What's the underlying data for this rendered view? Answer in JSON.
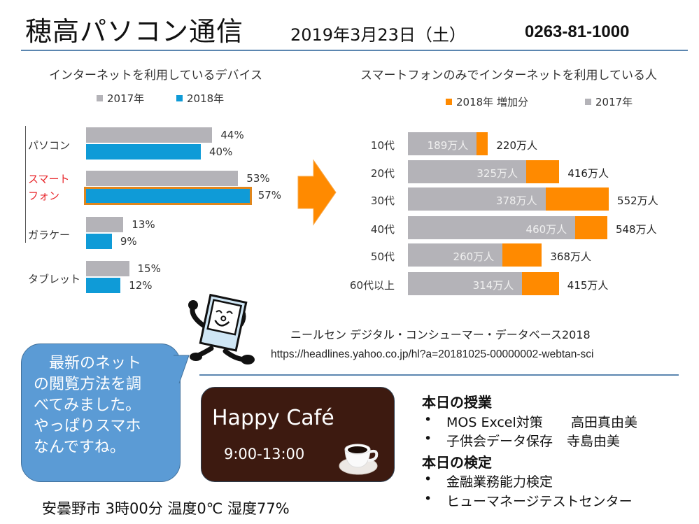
{
  "header": {
    "title": "穂高パソコン通信",
    "date": "2019年3月23日（土）",
    "phone": "0263-81-1000"
  },
  "colors": {
    "gray": "#b4b3b8",
    "blue": "#0f9bd7",
    "orange": "#ff8a00",
    "rule": "#5b86b0",
    "bubble": "#5b9bd5",
    "cafe": "#3d1a10",
    "highlight_red": "#e8262b"
  },
  "chart_data": [
    {
      "type": "bar",
      "orientation": "horizontal",
      "title": "インターネットを利用しているデバイス",
      "categories": [
        "パソコン",
        "スマートフォン",
        "ガラケー",
        "タブレット"
      ],
      "category_display": [
        [
          "パソコン"
        ],
        [
          "スマート",
          "フォン"
        ],
        [
          "ガラケー"
        ],
        [
          "タブレット"
        ]
      ],
      "highlight_category": "スマートフォン",
      "series": [
        {
          "name": "2017年",
          "values": [
            44,
            53,
            13,
            15
          ],
          "labels": [
            "44%",
            "53%",
            "13%",
            "15%"
          ]
        },
        {
          "name": "2018年",
          "values": [
            40,
            57,
            9,
            12
          ],
          "labels": [
            "40%",
            "57%",
            "9%",
            "12%"
          ]
        }
      ],
      "unit": "%",
      "xlim": [
        0,
        60
      ],
      "legend_position": "top"
    },
    {
      "type": "bar",
      "orientation": "horizontal",
      "stacked": true,
      "title": "スマートフォンのみでインターネットを利用している人",
      "categories": [
        "10代",
        "20代",
        "30代",
        "40代",
        "50代",
        "60代以上"
      ],
      "series": [
        {
          "name": "2017年",
          "values": [
            189,
            325,
            378,
            460,
            260,
            314
          ],
          "labels": [
            "189万人",
            "325万人",
            "378万人",
            "460万人",
            "260万人",
            "314万人"
          ]
        },
        {
          "name": "2018年 増加分",
          "values": [
            31,
            91,
            174,
            88,
            108,
            101
          ]
        }
      ],
      "totals": [
        220,
        416,
        552,
        548,
        368,
        415
      ],
      "total_labels": [
        "220万人",
        "416万人",
        "552万人",
        "548万人",
        "368万人",
        "415万人"
      ],
      "unit": "万人",
      "legend": [
        "2018年 増加分",
        "2017年"
      ],
      "legend_position": "top",
      "xlim": [
        0,
        560
      ]
    }
  ],
  "source": {
    "line1": "ニールセン デジタル・コンシューマー・データベース2018",
    "line2": "https://headlines.yahoo.co.jp/hl?a=20181025-00000002-webtan-sci"
  },
  "bubble": {
    "lines": [
      "　最新のネット",
      "の閲覧方法を調",
      "べてみました。",
      "やっぱりスマホ",
      "なんですね。"
    ]
  },
  "cafe": {
    "title": "Happy Café",
    "hours": "9:00-13:00",
    "icon": "coffee-cup-icon"
  },
  "classes": {
    "heading": "本日の授業",
    "items": [
      {
        "course": "MOS Excel対策",
        "teacher": "高田真由美"
      },
      {
        "course": "子供会データ保存",
        "teacher": "寺島由美"
      }
    ]
  },
  "exams": {
    "heading": "本日の検定",
    "items": [
      "金融業務能力検定",
      "ヒューマネージテストセンター"
    ]
  },
  "bullet": "•",
  "footer": {
    "text": "安曇野市 3時00分  温度0℃  湿度77%"
  }
}
